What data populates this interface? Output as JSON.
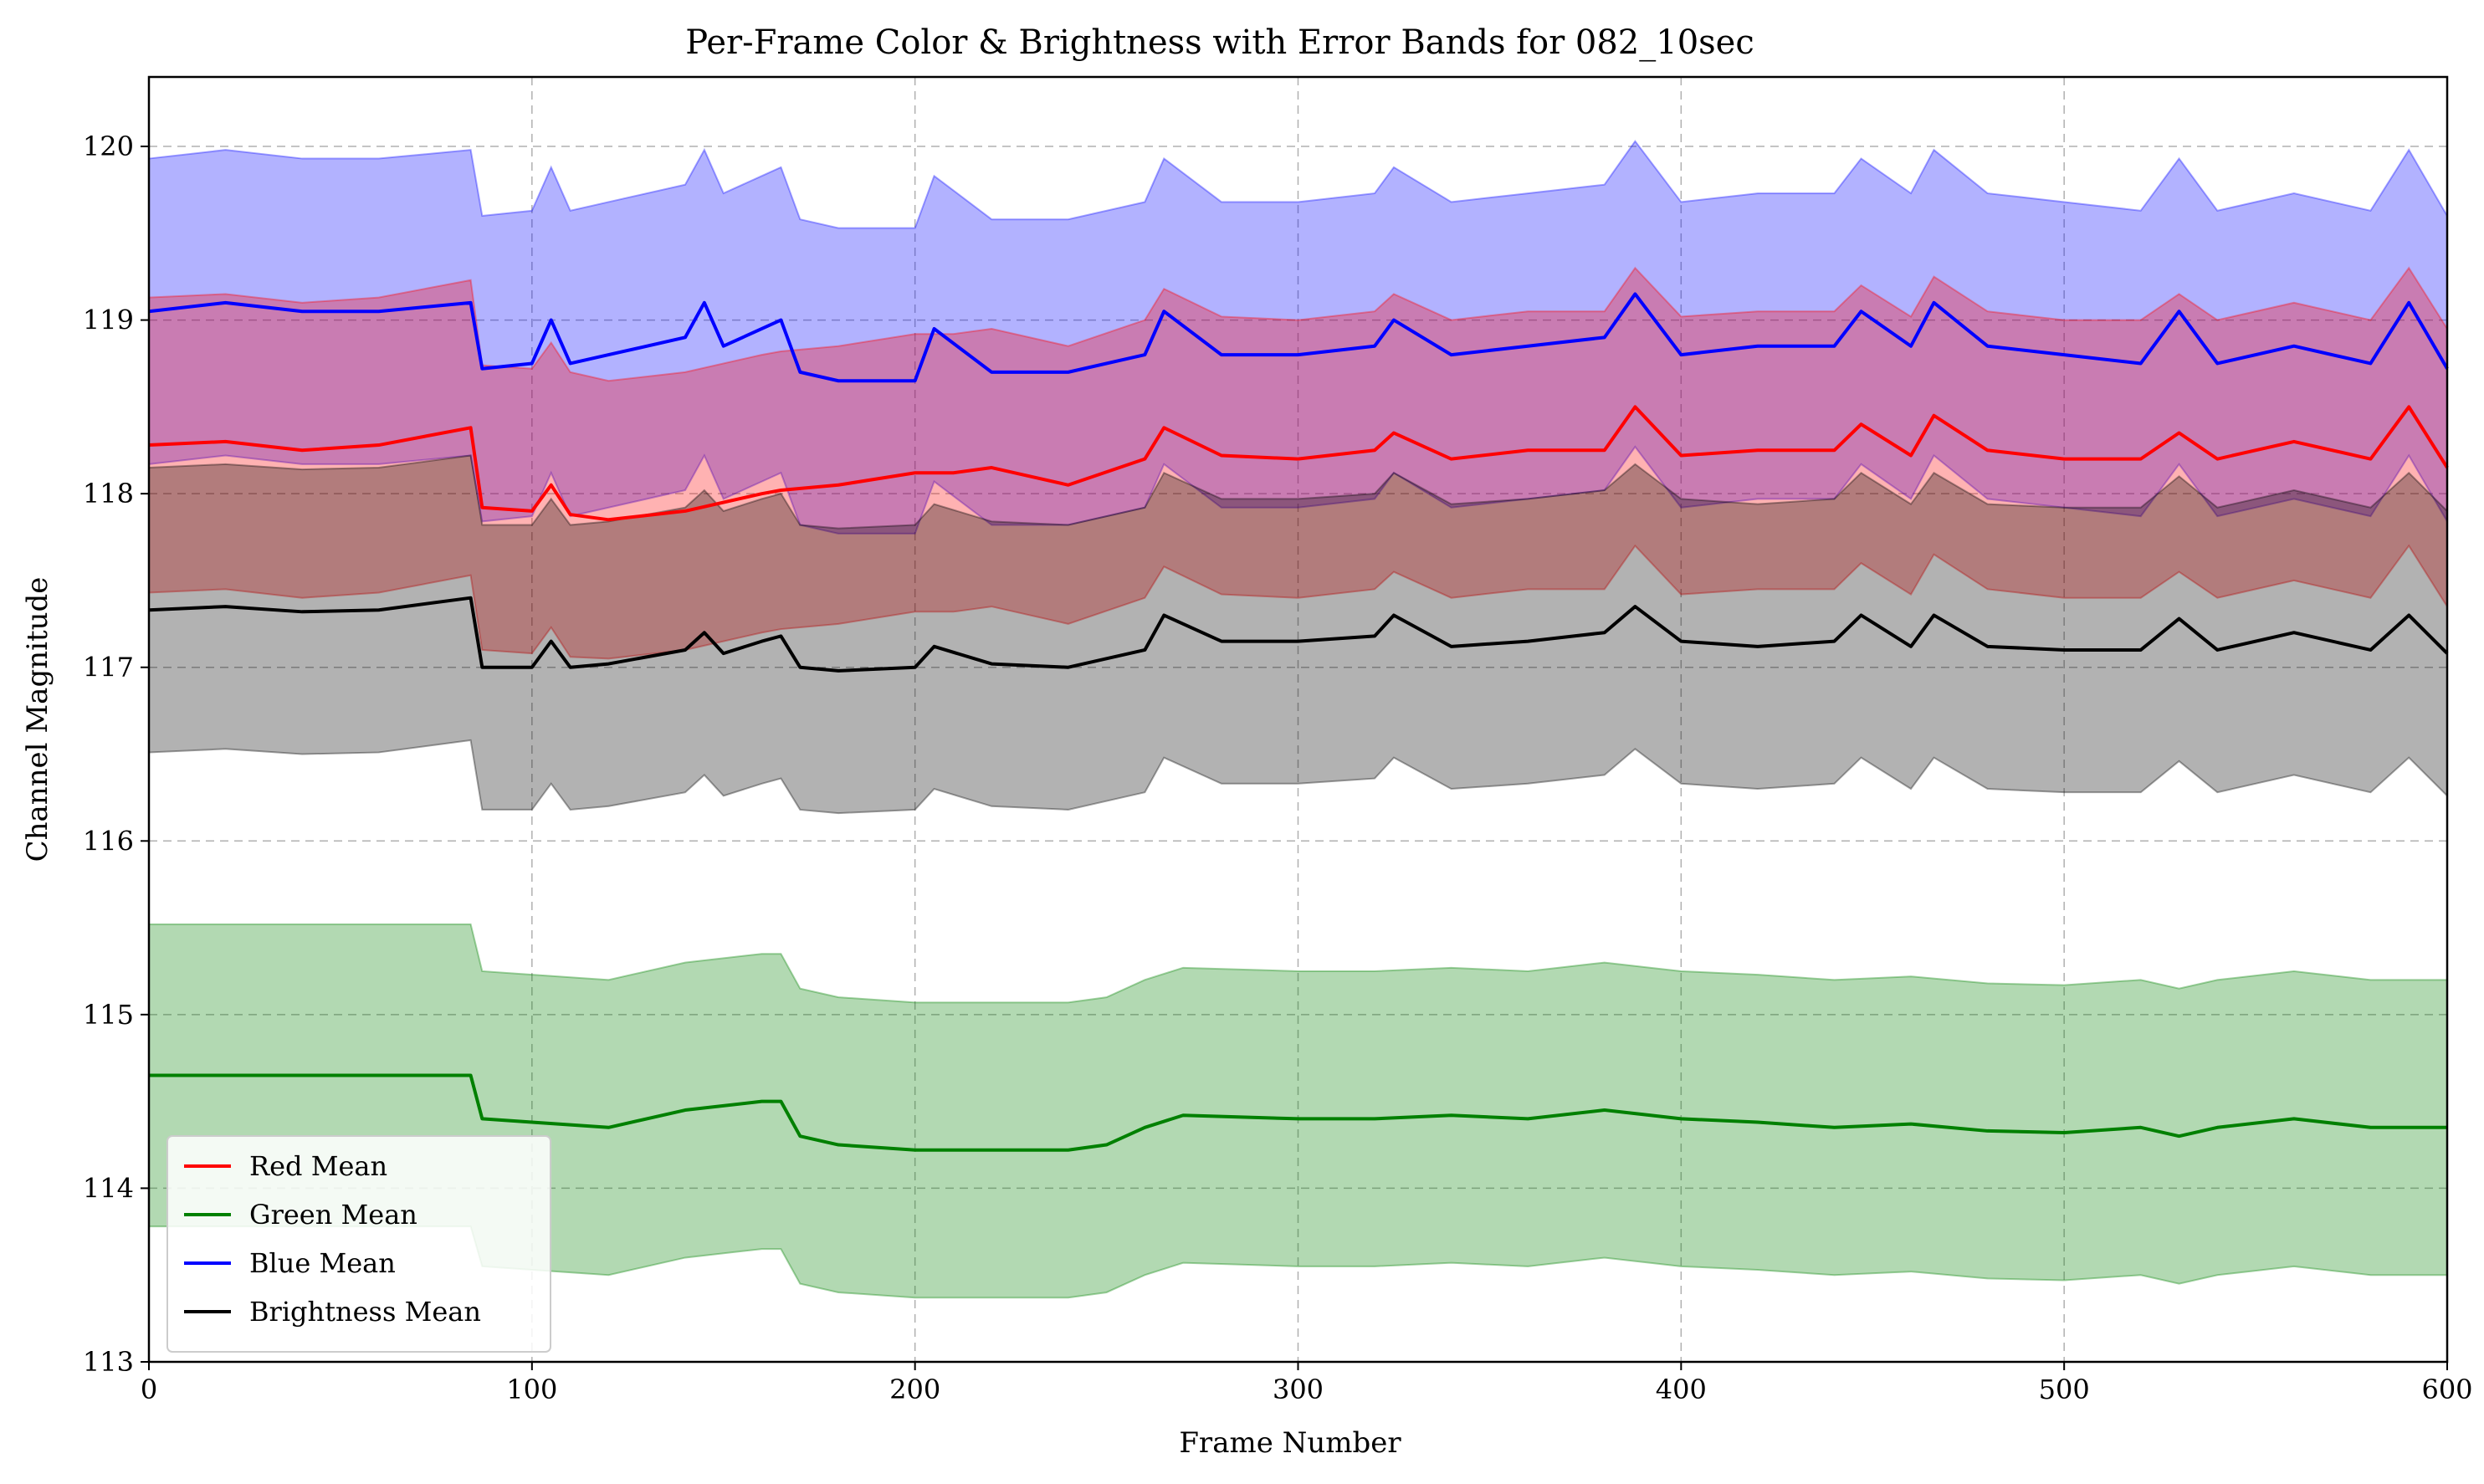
{
  "chart_data": {
    "type": "line",
    "title": "Per-Frame Color & Brightness with Error Bands for 082_10sec",
    "xlabel": "Frame Number",
    "ylabel": "Channel Magnitude",
    "xlim": [
      0,
      600
    ],
    "ylim": [
      113,
      120.4
    ],
    "xticks": [
      0,
      100,
      200,
      300,
      400,
      500,
      600
    ],
    "yticks": [
      113,
      114,
      115,
      116,
      117,
      118,
      119,
      120
    ],
    "grid": true,
    "legend_position": "lower-left",
    "series": [
      {
        "name": "Red Mean",
        "color": "#ff0000",
        "x": [
          0,
          20,
          40,
          60,
          84,
          87,
          100,
          105,
          110,
          120,
          140,
          160,
          165,
          180,
          200,
          210,
          220,
          240,
          260,
          265,
          280,
          300,
          320,
          325,
          340,
          360,
          380,
          388,
          400,
          420,
          440,
          447,
          460,
          466,
          480,
          500,
          520,
          530,
          540,
          560,
          580,
          590,
          600
        ],
        "mean": [
          118.28,
          118.3,
          118.25,
          118.28,
          118.38,
          117.92,
          117.9,
          118.05,
          117.88,
          117.85,
          117.9,
          118.0,
          118.02,
          118.05,
          118.12,
          118.12,
          118.15,
          118.05,
          118.2,
          118.38,
          118.22,
          118.2,
          118.25,
          118.35,
          118.2,
          118.25,
          118.25,
          118.5,
          118.22,
          118.25,
          118.25,
          118.4,
          118.22,
          118.45,
          118.25,
          118.2,
          118.2,
          118.35,
          118.2,
          118.3,
          118.2,
          118.5,
          118.15
        ],
        "std": [
          0.85,
          0.85,
          0.85,
          0.85,
          0.85,
          0.82,
          0.82,
          0.82,
          0.82,
          0.8,
          0.8,
          0.8,
          0.8,
          0.8,
          0.8,
          0.8,
          0.8,
          0.8,
          0.8,
          0.8,
          0.8,
          0.8,
          0.8,
          0.8,
          0.8,
          0.8,
          0.8,
          0.8,
          0.8,
          0.8,
          0.8,
          0.8,
          0.8,
          0.8,
          0.8,
          0.8,
          0.8,
          0.8,
          0.8,
          0.8,
          0.8,
          0.8,
          0.8
        ]
      },
      {
        "name": "Green Mean",
        "color": "#008000",
        "x": [
          0,
          20,
          40,
          60,
          84,
          87,
          100,
          120,
          140,
          160,
          165,
          170,
          180,
          200,
          220,
          240,
          250,
          260,
          270,
          300,
          320,
          340,
          360,
          380,
          400,
          420,
          440,
          460,
          480,
          500,
          520,
          530,
          540,
          560,
          580,
          600
        ],
        "mean": [
          114.65,
          114.65,
          114.65,
          114.65,
          114.65,
          114.4,
          114.38,
          114.35,
          114.45,
          114.5,
          114.5,
          114.3,
          114.25,
          114.22,
          114.22,
          114.22,
          114.25,
          114.35,
          114.42,
          114.4,
          114.4,
          114.42,
          114.4,
          114.45,
          114.4,
          114.38,
          114.35,
          114.37,
          114.33,
          114.32,
          114.35,
          114.3,
          114.35,
          114.4,
          114.35,
          114.35
        ],
        "std": [
          0.87,
          0.87,
          0.87,
          0.87,
          0.87,
          0.85,
          0.85,
          0.85,
          0.85,
          0.85,
          0.85,
          0.85,
          0.85,
          0.85,
          0.85,
          0.85,
          0.85,
          0.85,
          0.85,
          0.85,
          0.85,
          0.85,
          0.85,
          0.85,
          0.85,
          0.85,
          0.85,
          0.85,
          0.85,
          0.85,
          0.85,
          0.85,
          0.85,
          0.85,
          0.85,
          0.85
        ]
      },
      {
        "name": "Blue Mean",
        "color": "#0000ff",
        "x": [
          0,
          20,
          40,
          60,
          84,
          87,
          100,
          105,
          110,
          120,
          140,
          145,
          150,
          160,
          165,
          170,
          180,
          200,
          205,
          220,
          240,
          260,
          265,
          280,
          300,
          320,
          325,
          340,
          360,
          380,
          388,
          400,
          420,
          440,
          447,
          460,
          466,
          480,
          500,
          520,
          530,
          540,
          560,
          580,
          590,
          600
        ],
        "mean": [
          119.05,
          119.1,
          119.05,
          119.05,
          119.1,
          118.72,
          118.75,
          119.0,
          118.75,
          118.8,
          118.9,
          119.1,
          118.85,
          118.95,
          119.0,
          118.7,
          118.65,
          118.65,
          118.95,
          118.7,
          118.7,
          118.8,
          119.05,
          118.8,
          118.8,
          118.85,
          119.0,
          118.8,
          118.85,
          118.9,
          119.15,
          118.8,
          118.85,
          118.85,
          119.05,
          118.85,
          119.1,
          118.85,
          118.8,
          118.75,
          119.05,
          118.75,
          118.85,
          118.75,
          119.1,
          118.72
        ],
        "std": [
          0.88,
          0.88,
          0.88,
          0.88,
          0.88,
          0.88,
          0.88,
          0.88,
          0.88,
          0.88,
          0.88,
          0.88,
          0.88,
          0.88,
          0.88,
          0.88,
          0.88,
          0.88,
          0.88,
          0.88,
          0.88,
          0.88,
          0.88,
          0.88,
          0.88,
          0.88,
          0.88,
          0.88,
          0.88,
          0.88,
          0.88,
          0.88,
          0.88,
          0.88,
          0.88,
          0.88,
          0.88,
          0.88,
          0.88,
          0.88,
          0.88,
          0.88,
          0.88,
          0.88,
          0.88,
          0.88
        ]
      },
      {
        "name": "Brightness Mean",
        "color": "#000000",
        "x": [
          0,
          20,
          40,
          60,
          84,
          87,
          100,
          105,
          110,
          120,
          140,
          145,
          150,
          160,
          165,
          170,
          180,
          200,
          205,
          220,
          240,
          260,
          265,
          280,
          300,
          320,
          325,
          340,
          360,
          380,
          388,
          400,
          420,
          440,
          447,
          460,
          466,
          480,
          500,
          520,
          530,
          540,
          560,
          580,
          590,
          600
        ],
        "mean": [
          117.33,
          117.35,
          117.32,
          117.33,
          117.4,
          117.0,
          117.0,
          117.15,
          117.0,
          117.02,
          117.1,
          117.2,
          117.08,
          117.15,
          117.18,
          117.0,
          116.98,
          117.0,
          117.12,
          117.02,
          117.0,
          117.1,
          117.3,
          117.15,
          117.15,
          117.18,
          117.3,
          117.12,
          117.15,
          117.2,
          117.35,
          117.15,
          117.12,
          117.15,
          117.3,
          117.12,
          117.3,
          117.12,
          117.1,
          117.1,
          117.28,
          117.1,
          117.2,
          117.1,
          117.3,
          117.08
        ],
        "std": [
          0.82,
          0.82,
          0.82,
          0.82,
          0.82,
          0.82,
          0.82,
          0.82,
          0.82,
          0.82,
          0.82,
          0.82,
          0.82,
          0.82,
          0.82,
          0.82,
          0.82,
          0.82,
          0.82,
          0.82,
          0.82,
          0.82,
          0.82,
          0.82,
          0.82,
          0.82,
          0.82,
          0.82,
          0.82,
          0.82,
          0.82,
          0.82,
          0.82,
          0.82,
          0.82,
          0.82,
          0.82,
          0.82,
          0.82,
          0.82,
          0.82,
          0.82,
          0.82,
          0.82,
          0.82,
          0.82
        ]
      }
    ],
    "band_order": [
      "Blue Mean",
      "Red Mean",
      "Brightness Mean",
      "Green Mean"
    ]
  }
}
